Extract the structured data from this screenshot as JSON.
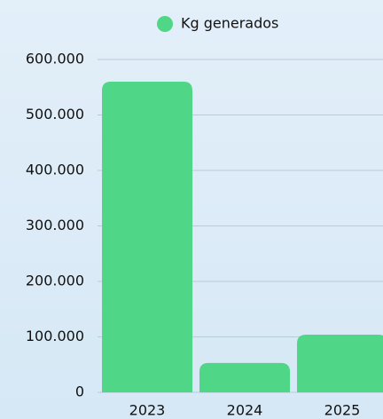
{
  "chart_data": {
    "type": "bar",
    "legend": "Kg generados",
    "color": "#4fd687",
    "categories": [
      "2023",
      "2024",
      "2025"
    ],
    "values": [
      560000,
      53000,
      104000
    ],
    "ylim": [
      0,
      600000
    ],
    "yticks": [
      0,
      {
        "value": 100000,
        "label": "100.000"
      },
      {
        "value": 200000,
        "label": "200.000"
      },
      {
        "value": 300000,
        "label": "300.000"
      },
      {
        "value": 400000,
        "label": "400.000"
      },
      {
        "value": 500000,
        "label": "500.000"
      },
      {
        "value": 600000,
        "label": "600.000"
      }
    ],
    "grid": true
  }
}
